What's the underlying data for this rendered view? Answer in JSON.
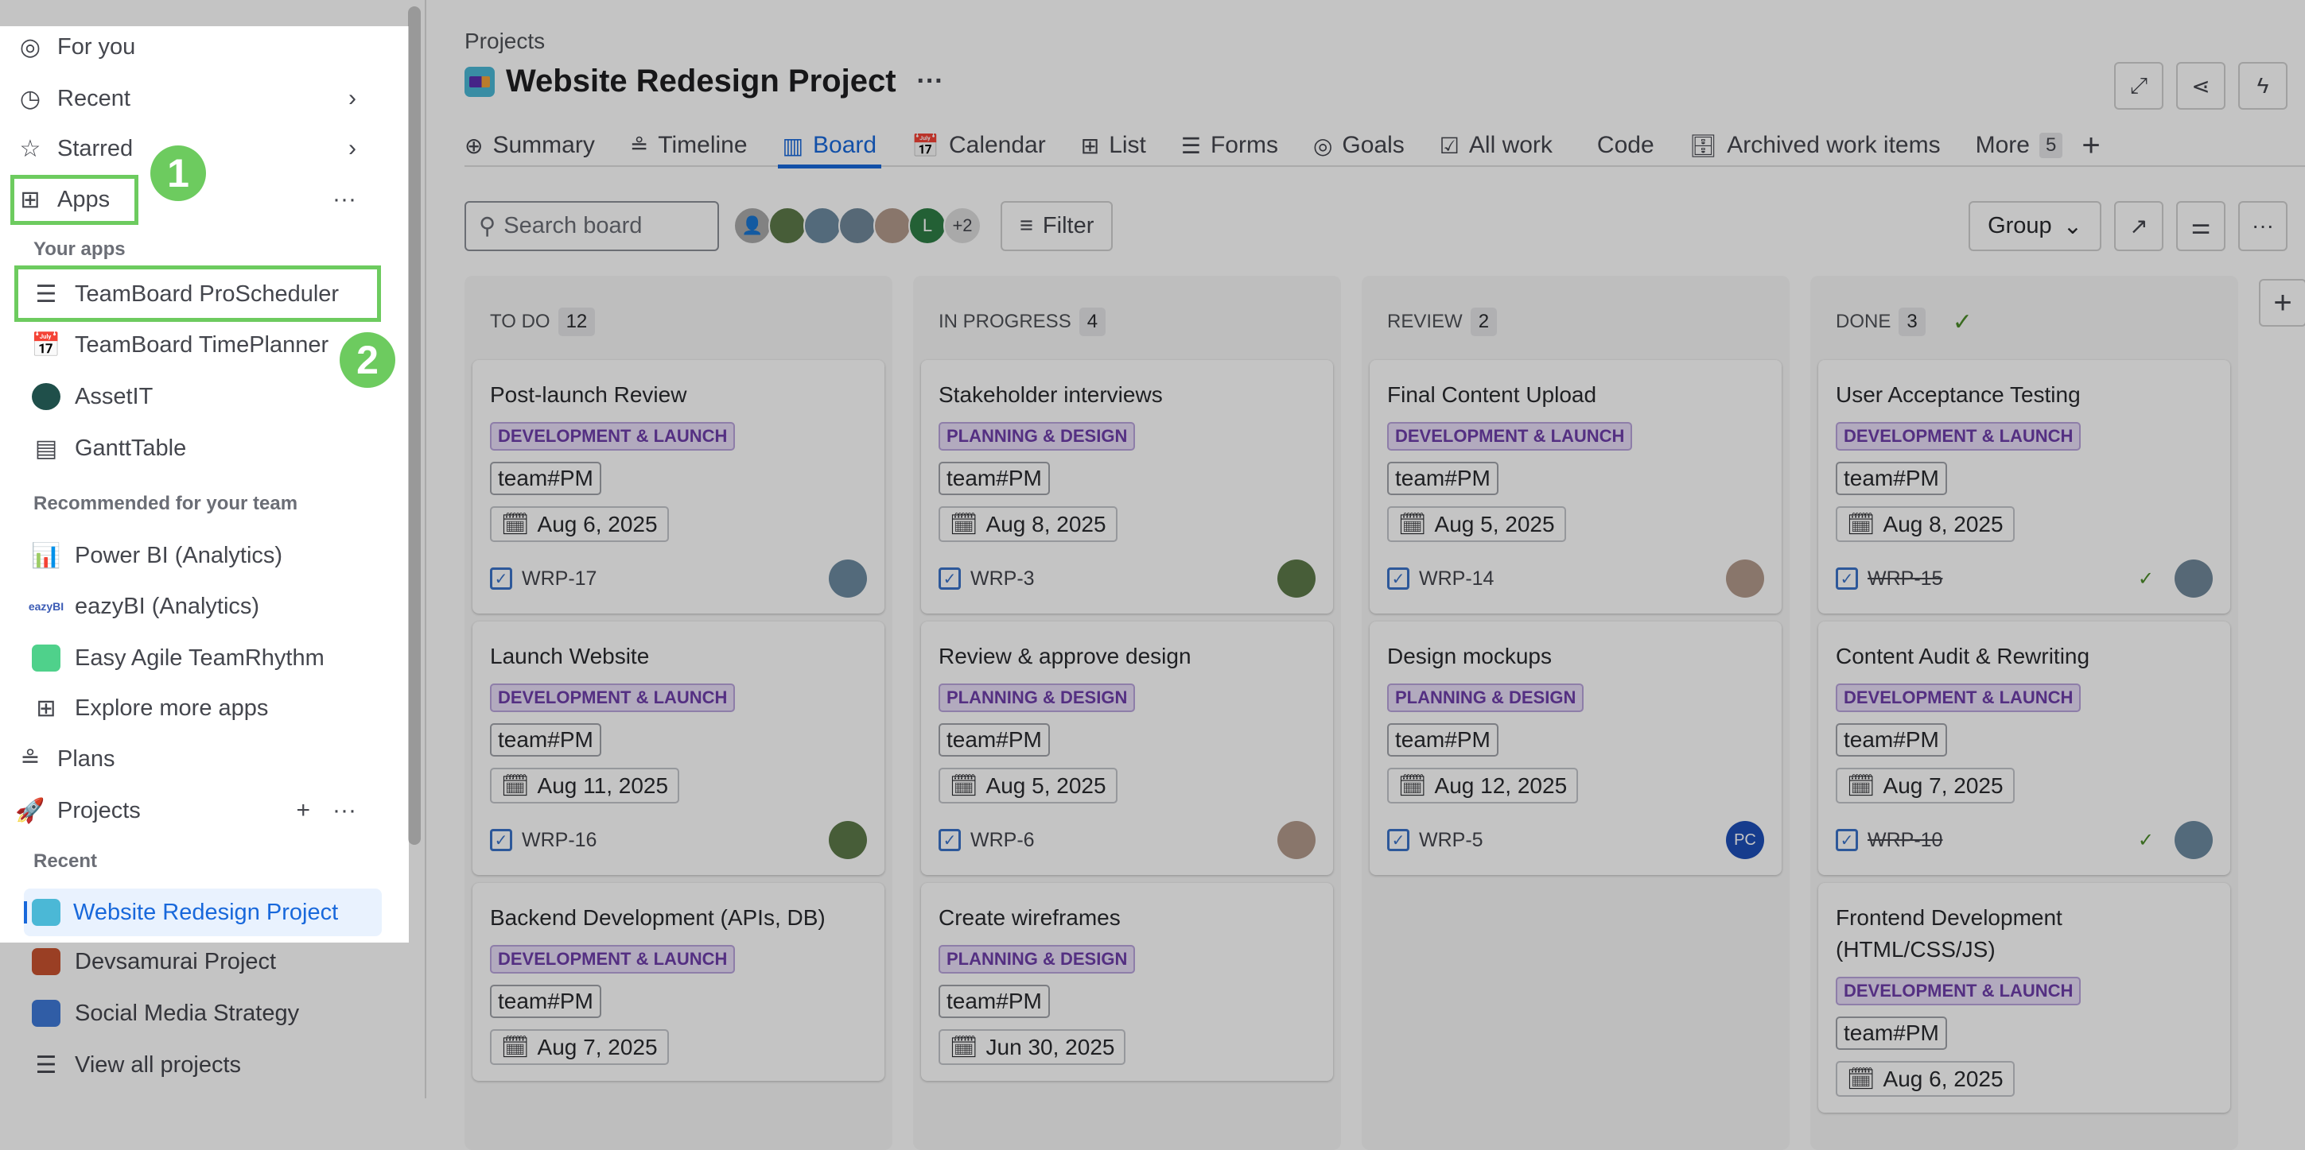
{
  "sidebar": {
    "for_you": "For you",
    "recent": "Recent",
    "starred": "Starred",
    "apps": "Apps",
    "your_apps": "Your apps",
    "your_apps_items": [
      "TeamBoard ProScheduler",
      "TeamBoard TimePlanner",
      "AssetIT",
      "GanttTable"
    ],
    "recommended": "Recommended for your team",
    "recommended_items": [
      "Power BI (Analytics)",
      "eazyBI (Analytics)",
      "Easy Agile TeamRhythm"
    ],
    "explore": "Explore more apps",
    "plans": "Plans",
    "projects": "Projects",
    "projects_recent": "Recent",
    "recent_projects": [
      "Website Redesign Project",
      "Devsamurai Project",
      "Social Media Strategy"
    ],
    "view_all": "View all projects"
  },
  "annotations": {
    "step1": "1",
    "step2": "2"
  },
  "header": {
    "breadcrumb": "Projects",
    "title": "Website Redesign Project"
  },
  "tabs": [
    "Summary",
    "Timeline",
    "Board",
    "Calendar",
    "List",
    "Forms",
    "Goals",
    "All work",
    "Code",
    "Archived work items"
  ],
  "active_tab": "Board",
  "more": {
    "label": "More",
    "count": "5"
  },
  "toolbar": {
    "search_placeholder": "Search board",
    "avatar_letter": "L",
    "avatar_extra": "+2",
    "filter": "Filter",
    "group": "Group"
  },
  "colors": {
    "accent": "#1868db",
    "label_purple": "#6e3eaa",
    "done_green": "#4c8c2a",
    "annotation_green": "#6dcb5f"
  },
  "columns": [
    {
      "name": "TO DO",
      "count": "12",
      "cards": [
        {
          "title": "Post-launch Review",
          "label": "DEVELOPMENT & LAUNCH",
          "team": "team#PM",
          "date": "Aug 6, 2025",
          "key": "WRP-17"
        },
        {
          "title": "Launch Website",
          "label": "DEVELOPMENT & LAUNCH",
          "team": "team#PM",
          "date": "Aug 11, 2025",
          "key": "WRP-16"
        },
        {
          "title": "Backend Development (APIs, DB)",
          "label": "DEVELOPMENT & LAUNCH",
          "team": "team#PM",
          "date": "Aug 7, 2025"
        }
      ]
    },
    {
      "name": "IN PROGRESS",
      "count": "4",
      "cards": [
        {
          "title": "Stakeholder interviews",
          "label": "PLANNING & DESIGN",
          "team": "team#PM",
          "date": "Aug 8, 2025",
          "key": "WRP-3"
        },
        {
          "title": "Review & approve design",
          "label": "PLANNING & DESIGN",
          "team": "team#PM",
          "date": "Aug 5, 2025",
          "key": "WRP-6"
        },
        {
          "title": "Create wireframes",
          "label": "PLANNING & DESIGN",
          "team": "team#PM",
          "date": "Jun 30, 2025"
        }
      ]
    },
    {
      "name": "REVIEW",
      "count": "2",
      "cards": [
        {
          "title": "Final Content Upload",
          "label": "DEVELOPMENT & LAUNCH",
          "team": "team#PM",
          "date": "Aug 5, 2025",
          "key": "WRP-14"
        },
        {
          "title": "Design mockups",
          "label": "PLANNING & DESIGN",
          "team": "team#PM",
          "date": "Aug 12, 2025",
          "key": "WRP-5",
          "assignee": "PC"
        }
      ]
    },
    {
      "name": "DONE",
      "count": "3",
      "done": true,
      "cards": [
        {
          "title": "User Acceptance Testing",
          "label": "DEVELOPMENT & LAUNCH",
          "team": "team#PM",
          "date": "Aug 8, 2025",
          "key": "WRP-15"
        },
        {
          "title": "Content Audit & Rewriting",
          "label": "DEVELOPMENT & LAUNCH",
          "team": "team#PM",
          "date": "Aug 7, 2025",
          "key": "WRP-10"
        },
        {
          "title": "Frontend Development (HTML/CSS/JS)",
          "label": "DEVELOPMENT & LAUNCH",
          "team": "team#PM",
          "date": "Aug 6, 2025"
        }
      ]
    }
  ]
}
